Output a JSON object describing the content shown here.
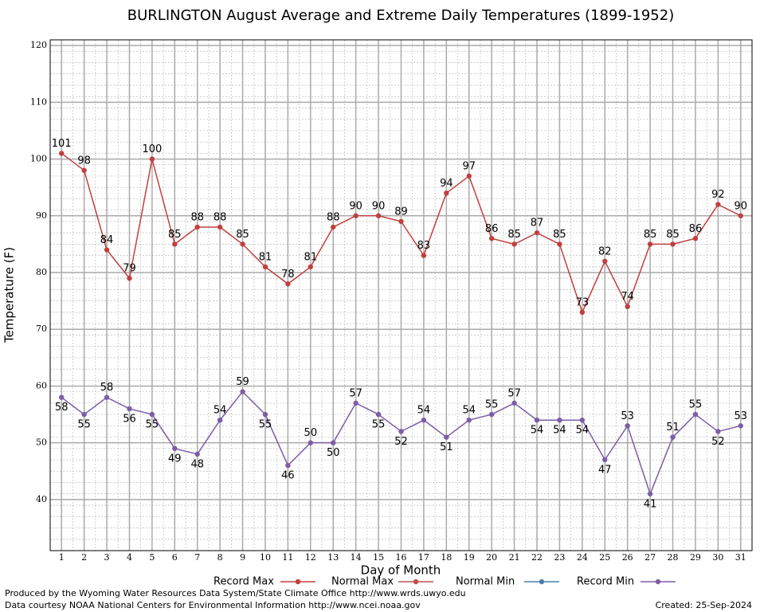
{
  "chart_data": {
    "type": "line",
    "title": "BURLINGTON August Average and Extreme Daily Temperatures (1899-1952)",
    "x_label": "Day of Month",
    "y_label": "Temperature (F)",
    "x": [
      1,
      2,
      3,
      4,
      5,
      6,
      7,
      8,
      9,
      10,
      11,
      12,
      13,
      14,
      15,
      16,
      17,
      18,
      19,
      20,
      21,
      22,
      23,
      24,
      25,
      26,
      27,
      28,
      29,
      30,
      31
    ],
    "xlim": [
      0.5,
      31.5
    ],
    "xticks": [
      1,
      2,
      3,
      4,
      5,
      6,
      7,
      8,
      9,
      10,
      11,
      12,
      13,
      14,
      15,
      16,
      17,
      18,
      19,
      20,
      21,
      22,
      23,
      24,
      25,
      26,
      27,
      28,
      29,
      30,
      31
    ],
    "ylim": [
      31,
      121
    ],
    "yticks": [
      40,
      50,
      60,
      70,
      80,
      90,
      100,
      110,
      120
    ],
    "grid": true,
    "legend": "bottom",
    "series": [
      {
        "name": "Record Max",
        "color": "#c0403f",
        "values": [
          101,
          98,
          84,
          79,
          100,
          85,
          88,
          88,
          85,
          81,
          78,
          81,
          88,
          90,
          90,
          89,
          83,
          94,
          97,
          86,
          85,
          87,
          85,
          73,
          82,
          74,
          85,
          85,
          86,
          92,
          90
        ]
      },
      {
        "name": "Normal Max",
        "color": "#c0504d",
        "values": [
          null,
          null,
          null,
          null,
          null,
          null,
          null,
          null,
          null,
          null,
          null,
          null,
          null,
          null,
          null,
          null,
          null,
          null,
          null,
          null,
          null,
          null,
          null,
          null,
          null,
          null,
          null,
          null,
          null,
          null,
          null
        ]
      },
      {
        "name": "Normal Min",
        "color": "#4a7fb0",
        "values": [
          null,
          null,
          null,
          null,
          null,
          null,
          null,
          null,
          null,
          null,
          null,
          null,
          null,
          null,
          null,
          null,
          null,
          null,
          null,
          null,
          null,
          null,
          null,
          null,
          null,
          null,
          null,
          null,
          null,
          null,
          null
        ]
      },
      {
        "name": "Record Min",
        "color": "#7b5ea7",
        "values": [
          58,
          55,
          58,
          56,
          55,
          49,
          48,
          54,
          59,
          55,
          46,
          50,
          50,
          57,
          55,
          52,
          54,
          51,
          54,
          55,
          57,
          54,
          54,
          54,
          47,
          53,
          41,
          51,
          55,
          52,
          53
        ]
      }
    ],
    "footer": [
      "Produced by the Wyoming Water Resources Data System/State Climate Office http://www.wrds.uwyo.edu",
      "Data courtesy NOAA National Centers for Environmental Information http://www.ncei.noaa.gov"
    ],
    "created": "Created:  25-Sep-2024"
  }
}
